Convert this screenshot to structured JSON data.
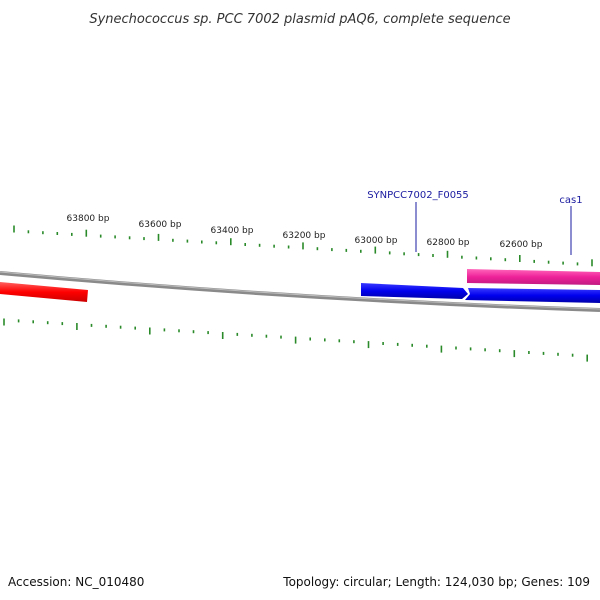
{
  "title": "Synechococcus sp. PCC 7002 plasmid pAQ6, complete sequence",
  "footer": {
    "accession": "Accession: NC_010480",
    "summary": "Topology: circular; Length: 124,030 bp; Genes: 109"
  },
  "colors": {
    "backbone": "#8a8a8a",
    "tick": "#2a8a2a",
    "gene_label": "#1a1aa0",
    "red_gene": "#ff0000",
    "blue_gene": "#0000ee",
    "pink_gene": "#ee2299"
  },
  "scale": {
    "labels": [
      "63800 bp",
      "63600 bp",
      "63400 bp",
      "63200 bp",
      "63000 bp",
      "62800 bp",
      "62600 bp"
    ]
  },
  "genes": {
    "synpcc": "SYNPCC7002_F0055",
    "cas1": "cas1"
  }
}
